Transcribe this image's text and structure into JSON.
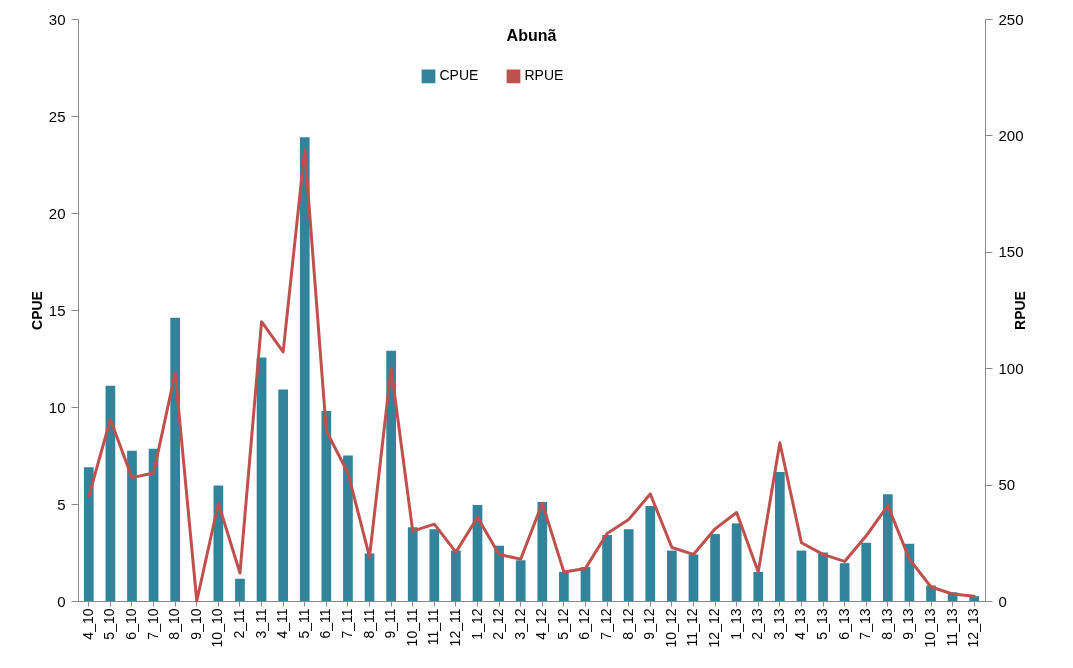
{
  "chart_data": {
    "type": "bar",
    "title": "Abunã",
    "ylabel": "CPUE",
    "y2label": "RPUE",
    "categories": [
      "4_10",
      "5_10",
      "6_10",
      "7_10",
      "8_10",
      "9_10",
      "10_10",
      "2_11",
      "3_11",
      "4_11",
      "5_11",
      "6_11",
      "7_11",
      "8_11",
      "9_11",
      "10_11",
      "11_11",
      "12_11",
      "1_12",
      "2_12",
      "3_12",
      "4_12",
      "5_12",
      "6_12",
      "7_12",
      "8_12",
      "9_12",
      "10_12",
      "11_12",
      "12_12",
      "1_13",
      "2_13",
      "3_13",
      "4_13",
      "5_13",
      "6_13",
      "7_13",
      "8_13",
      "9_13",
      "10_13",
      "11_13",
      "12_13"
    ],
    "series": [
      {
        "name": "CPUE",
        "color": "#31849b",
        "values": [
          6.9,
          11.1,
          7.75,
          7.85,
          14.6,
          0,
          5.95,
          1.15,
          12.55,
          10.9,
          23.9,
          9.8,
          7.5,
          2.45,
          12.9,
          3.8,
          3.7,
          2.6,
          4.95,
          2.85,
          2.1,
          5.1,
          1.5,
          1.75,
          3.4,
          3.7,
          4.9,
          2.6,
          2.4,
          3.45,
          4.0,
          1.5,
          6.65,
          2.6,
          2.5,
          1.95,
          3.0,
          5.5,
          2.95,
          0.8,
          0.45,
          0.25
        ]
      },
      {
        "name": "RPUE",
        "type": "line",
        "axis": "y2",
        "color": "#c0504d",
        "values": [
          45,
          78,
          53,
          55,
          98,
          0,
          42,
          12,
          120,
          107,
          194,
          73,
          55,
          19,
          100,
          30,
          33,
          21,
          36,
          20,
          18,
          42,
          12.5,
          14,
          29,
          35,
          46,
          23,
          20,
          31,
          38,
          12.5,
          68,
          25,
          20,
          17,
          28,
          41,
          18,
          6,
          3,
          2
        ]
      }
    ],
    "ylim": [
      0,
      30
    ],
    "yticks": [
      0,
      5,
      10,
      15,
      20,
      25,
      30
    ],
    "y2lim": [
      0,
      250
    ],
    "y2ticks": [
      0,
      50,
      100,
      150,
      200,
      250
    ],
    "legend": "top"
  }
}
